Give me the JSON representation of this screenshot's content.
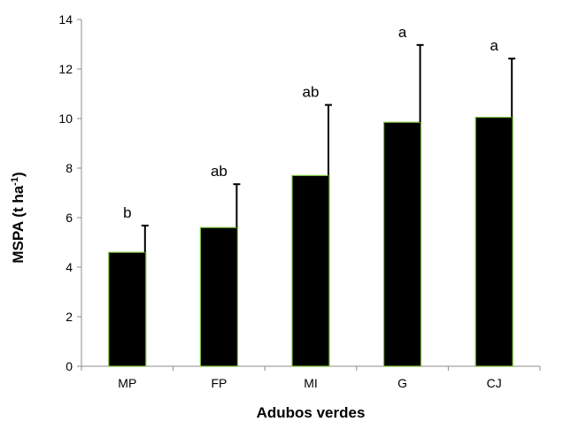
{
  "chart_data": {
    "type": "bar",
    "categories": [
      "MP",
      "FP",
      "MI",
      "G",
      "CJ"
    ],
    "values": [
      4.6,
      5.6,
      7.7,
      9.85,
      10.05
    ],
    "error_upper": [
      5.68,
      7.35,
      10.55,
      12.97,
      12.42
    ],
    "significance_letters": [
      "b",
      "ab",
      "ab",
      "a",
      "a"
    ],
    "xlabel": "Adubos verdes",
    "ylabel": "MSPA (t ha",
    "ylabel_superscript": "-1",
    "ylabel_suffix": ")",
    "ylim": [
      0,
      14
    ],
    "yticks": [
      0,
      2,
      4,
      6,
      8,
      10,
      12,
      14
    ],
    "grid": false,
    "legend": "none",
    "colors": {
      "bar_fill": "#000000",
      "bar_stroke": "#7fbf3f",
      "axis": "#8c8c8c",
      "error_bar": "#000000",
      "text": "#000000"
    }
  }
}
